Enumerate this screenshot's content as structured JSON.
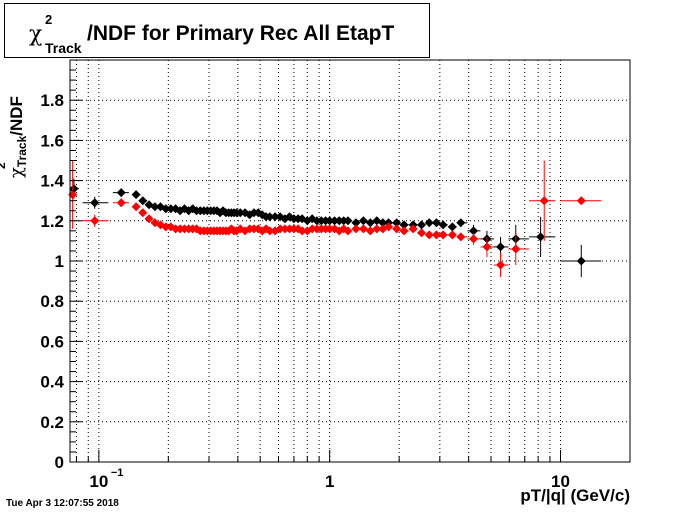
{
  "title": {
    "symbol": "χ",
    "superscript": "2",
    "subscript": "Track",
    "text": "/NDF for Primary Rec All EtapT"
  },
  "timestamp": "Tue Apr  3 12:07:55 2018",
  "chart_data": {
    "type": "scatter",
    "xscale": "log",
    "xlim": [
      0.075,
      20
    ],
    "ylim": [
      0,
      2.0
    ],
    "grid": true,
    "xlabel": "pT/|q| (GeV/c)",
    "ylabel": "/NDF",
    "ylabel_symbol": "χ",
    "ylabel_sup": "2",
    "ylabel_sub": "Track",
    "yticks": [
      {
        "v": 0,
        "label": "0"
      },
      {
        "v": 0.2,
        "label": "0.2"
      },
      {
        "v": 0.4,
        "label": "0.4"
      },
      {
        "v": 0.6,
        "label": "0.6"
      },
      {
        "v": 0.8,
        "label": "0.8"
      },
      {
        "v": 1,
        "label": "1"
      },
      {
        "v": 1.2,
        "label": "1.2"
      },
      {
        "v": 1.4,
        "label": "1.4"
      },
      {
        "v": 1.6,
        "label": "1.6"
      },
      {
        "v": 1.8,
        "label": "1.8"
      }
    ],
    "xticks": [
      {
        "v": 0.1,
        "base": "10",
        "exp": "−1"
      },
      {
        "v": 1,
        "base": "1",
        "exp": ""
      },
      {
        "v": 10,
        "base": "10",
        "exp": ""
      }
    ],
    "series": [
      {
        "color": "#000000",
        "x": [
          0.078,
          0.096,
          0.125,
          0.145,
          0.155,
          0.165,
          0.175,
          0.185,
          0.195,
          0.205,
          0.215,
          0.225,
          0.235,
          0.245,
          0.255,
          0.265,
          0.275,
          0.285,
          0.295,
          0.305,
          0.315,
          0.325,
          0.335,
          0.345,
          0.355,
          0.365,
          0.375,
          0.385,
          0.395,
          0.41,
          0.43,
          0.45,
          0.47,
          0.49,
          0.51,
          0.53,
          0.55,
          0.58,
          0.61,
          0.64,
          0.67,
          0.7,
          0.73,
          0.76,
          0.8,
          0.84,
          0.88,
          0.92,
          0.96,
          1.0,
          1.05,
          1.1,
          1.15,
          1.2,
          1.3,
          1.4,
          1.5,
          1.6,
          1.7,
          1.8,
          1.95,
          2.1,
          2.3,
          2.5,
          2.7,
          2.9,
          3.1,
          3.4,
          3.7,
          4.2,
          4.8,
          5.5,
          6.4,
          8.2,
          12.3
        ],
        "y": [
          1.36,
          1.29,
          1.34,
          1.33,
          1.3,
          1.28,
          1.27,
          1.27,
          1.26,
          1.26,
          1.26,
          1.25,
          1.26,
          1.25,
          1.26,
          1.25,
          1.25,
          1.25,
          1.25,
          1.25,
          1.25,
          1.25,
          1.24,
          1.25,
          1.24,
          1.24,
          1.24,
          1.24,
          1.24,
          1.24,
          1.24,
          1.23,
          1.24,
          1.24,
          1.23,
          1.22,
          1.22,
          1.22,
          1.22,
          1.21,
          1.22,
          1.21,
          1.21,
          1.21,
          1.2,
          1.21,
          1.2,
          1.2,
          1.2,
          1.2,
          1.2,
          1.2,
          1.2,
          1.2,
          1.19,
          1.2,
          1.19,
          1.2,
          1.19,
          1.19,
          1.19,
          1.18,
          1.18,
          1.18,
          1.19,
          1.19,
          1.18,
          1.17,
          1.19,
          1.15,
          1.11,
          1.07,
          1.11,
          1.12,
          1.0
        ],
        "yerr": [
          0.05,
          0.03,
          0.02,
          0.01,
          0.01,
          0.01,
          0.01,
          0.01,
          0.01,
          0.01,
          0.01,
          0.01,
          0.01,
          0.01,
          0.01,
          0.01,
          0.01,
          0.01,
          0.01,
          0.01,
          0.01,
          0.01,
          0.01,
          0.01,
          0.01,
          0.01,
          0.01,
          0.01,
          0.01,
          0.01,
          0.01,
          0.01,
          0.01,
          0.01,
          0.01,
          0.01,
          0.01,
          0.01,
          0.01,
          0.01,
          0.01,
          0.01,
          0.01,
          0.01,
          0.01,
          0.01,
          0.01,
          0.01,
          0.01,
          0.01,
          0.01,
          0.01,
          0.01,
          0.01,
          0.01,
          0.01,
          0.01,
          0.01,
          0.01,
          0.01,
          0.01,
          0.01,
          0.01,
          0.01,
          0.01,
          0.01,
          0.01,
          0.01,
          0.02,
          0.03,
          0.04,
          0.05,
          0.07,
          0.1,
          0.08
        ],
        "xlo": [
          0.075,
          0.085,
          0.115,
          0.14,
          0.15,
          0.16,
          0.17,
          0.18,
          0.19,
          0.2,
          0.21,
          0.22,
          0.23,
          0.24,
          0.25,
          0.26,
          0.27,
          0.28,
          0.29,
          0.3,
          0.31,
          0.32,
          0.33,
          0.34,
          0.35,
          0.36,
          0.37,
          0.38,
          0.39,
          0.4,
          0.42,
          0.44,
          0.46,
          0.48,
          0.5,
          0.52,
          0.54,
          0.565,
          0.595,
          0.625,
          0.655,
          0.685,
          0.715,
          0.745,
          0.78,
          0.82,
          0.86,
          0.9,
          0.94,
          0.98,
          1.025,
          1.075,
          1.125,
          1.175,
          1.25,
          1.35,
          1.45,
          1.55,
          1.65,
          1.75,
          1.875,
          2.025,
          2.2,
          2.4,
          2.6,
          2.8,
          3.0,
          3.25,
          3.55,
          3.95,
          4.5,
          5.15,
          5.95,
          7.3,
          10.0
        ],
        "xhi": [
          0.082,
          0.11,
          0.135,
          0.15,
          0.16,
          0.17,
          0.18,
          0.19,
          0.2,
          0.21,
          0.22,
          0.23,
          0.24,
          0.25,
          0.26,
          0.27,
          0.28,
          0.29,
          0.3,
          0.31,
          0.32,
          0.33,
          0.34,
          0.35,
          0.36,
          0.37,
          0.38,
          0.39,
          0.4,
          0.42,
          0.44,
          0.46,
          0.48,
          0.5,
          0.52,
          0.54,
          0.56,
          0.595,
          0.625,
          0.655,
          0.685,
          0.715,
          0.745,
          0.775,
          0.82,
          0.86,
          0.9,
          0.94,
          0.98,
          1.025,
          1.075,
          1.125,
          1.175,
          1.25,
          1.35,
          1.45,
          1.55,
          1.65,
          1.75,
          1.875,
          2.025,
          2.2,
          2.4,
          2.6,
          2.8,
          3.0,
          3.25,
          3.55,
          3.95,
          4.5,
          5.15,
          5.95,
          7.3,
          9.5,
          15.0
        ]
      },
      {
        "color": "#ff0000",
        "x": [
          0.077,
          0.096,
          0.125,
          0.145,
          0.155,
          0.165,
          0.175,
          0.185,
          0.195,
          0.205,
          0.215,
          0.225,
          0.235,
          0.245,
          0.255,
          0.265,
          0.275,
          0.285,
          0.295,
          0.305,
          0.315,
          0.325,
          0.335,
          0.345,
          0.355,
          0.365,
          0.375,
          0.385,
          0.395,
          0.41,
          0.43,
          0.45,
          0.47,
          0.49,
          0.51,
          0.53,
          0.55,
          0.58,
          0.61,
          0.64,
          0.67,
          0.7,
          0.73,
          0.76,
          0.8,
          0.84,
          0.88,
          0.92,
          0.96,
          1.0,
          1.05,
          1.1,
          1.15,
          1.2,
          1.3,
          1.4,
          1.5,
          1.6,
          1.7,
          1.8,
          1.95,
          2.1,
          2.3,
          2.5,
          2.7,
          2.9,
          3.1,
          3.4,
          3.7,
          4.2,
          4.8,
          5.5,
          6.4,
          8.5,
          12.3
        ],
        "y": [
          1.33,
          1.2,
          1.29,
          1.27,
          1.24,
          1.21,
          1.19,
          1.18,
          1.17,
          1.17,
          1.16,
          1.16,
          1.16,
          1.16,
          1.16,
          1.16,
          1.15,
          1.15,
          1.15,
          1.15,
          1.15,
          1.15,
          1.15,
          1.15,
          1.15,
          1.15,
          1.16,
          1.15,
          1.15,
          1.16,
          1.15,
          1.16,
          1.16,
          1.16,
          1.15,
          1.16,
          1.15,
          1.15,
          1.16,
          1.16,
          1.16,
          1.16,
          1.16,
          1.15,
          1.15,
          1.16,
          1.16,
          1.16,
          1.16,
          1.16,
          1.16,
          1.15,
          1.16,
          1.15,
          1.16,
          1.16,
          1.15,
          1.16,
          1.16,
          1.17,
          1.16,
          1.15,
          1.16,
          1.14,
          1.13,
          1.13,
          1.13,
          1.13,
          1.12,
          1.11,
          1.07,
          0.98,
          1.06,
          1.3,
          1.3
        ],
        "yerr": [
          0.17,
          0.03,
          0.02,
          0.01,
          0.01,
          0.01,
          0.01,
          0.01,
          0.01,
          0.01,
          0.01,
          0.01,
          0.01,
          0.01,
          0.01,
          0.01,
          0.01,
          0.01,
          0.01,
          0.01,
          0.01,
          0.01,
          0.01,
          0.01,
          0.01,
          0.01,
          0.01,
          0.01,
          0.01,
          0.01,
          0.01,
          0.01,
          0.01,
          0.01,
          0.01,
          0.01,
          0.01,
          0.01,
          0.01,
          0.01,
          0.01,
          0.01,
          0.01,
          0.01,
          0.01,
          0.01,
          0.01,
          0.01,
          0.01,
          0.01,
          0.01,
          0.01,
          0.01,
          0.01,
          0.01,
          0.01,
          0.01,
          0.01,
          0.01,
          0.01,
          0.01,
          0.01,
          0.01,
          0.01,
          0.01,
          0.01,
          0.01,
          0.01,
          0.02,
          0.03,
          0.05,
          0.06,
          0.08,
          0.2,
          0.0
        ],
        "xlo": [
          0.075,
          0.085,
          0.115,
          0.14,
          0.15,
          0.16,
          0.17,
          0.18,
          0.19,
          0.2,
          0.21,
          0.22,
          0.23,
          0.24,
          0.25,
          0.26,
          0.27,
          0.28,
          0.29,
          0.3,
          0.31,
          0.32,
          0.33,
          0.34,
          0.35,
          0.36,
          0.37,
          0.38,
          0.39,
          0.4,
          0.42,
          0.44,
          0.46,
          0.48,
          0.5,
          0.52,
          0.54,
          0.565,
          0.595,
          0.625,
          0.655,
          0.685,
          0.715,
          0.745,
          0.78,
          0.82,
          0.86,
          0.9,
          0.94,
          0.98,
          1.025,
          1.075,
          1.125,
          1.175,
          1.25,
          1.35,
          1.45,
          1.55,
          1.65,
          1.75,
          1.875,
          2.025,
          2.2,
          2.4,
          2.6,
          2.8,
          3.0,
          3.25,
          3.55,
          3.95,
          4.5,
          5.15,
          5.95,
          7.3,
          10.0
        ],
        "xhi": [
          0.08,
          0.11,
          0.135,
          0.15,
          0.16,
          0.17,
          0.18,
          0.19,
          0.2,
          0.21,
          0.22,
          0.23,
          0.24,
          0.25,
          0.26,
          0.27,
          0.28,
          0.29,
          0.3,
          0.31,
          0.32,
          0.33,
          0.34,
          0.35,
          0.36,
          0.37,
          0.38,
          0.39,
          0.4,
          0.42,
          0.44,
          0.46,
          0.48,
          0.5,
          0.52,
          0.54,
          0.56,
          0.595,
          0.625,
          0.655,
          0.685,
          0.715,
          0.745,
          0.775,
          0.82,
          0.86,
          0.9,
          0.94,
          0.98,
          1.025,
          1.075,
          1.125,
          1.175,
          1.25,
          1.35,
          1.45,
          1.55,
          1.65,
          1.75,
          1.875,
          2.025,
          2.2,
          2.4,
          2.6,
          2.8,
          3.0,
          3.25,
          3.55,
          3.95,
          4.5,
          5.15,
          5.95,
          7.3,
          9.5,
          15.0
        ]
      }
    ]
  }
}
